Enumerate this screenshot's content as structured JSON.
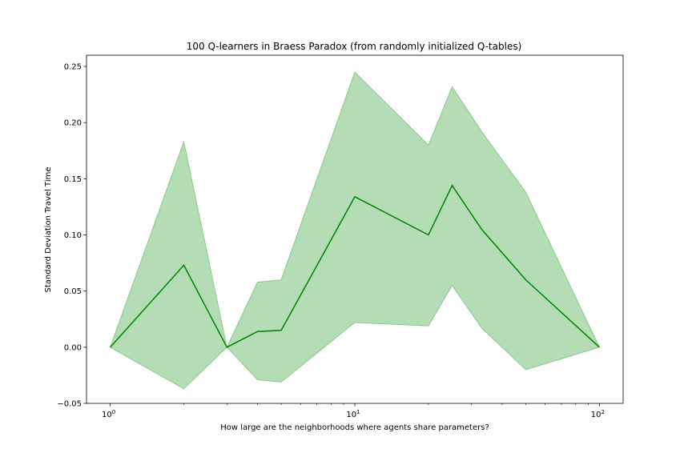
{
  "chart_data": {
    "type": "line",
    "title": "100 Q-learners in Braess Paradox (from randomly initialized Q-tables)",
    "xlabel": "How large are the neighborhoods where agents share parameters?",
    "ylabel": "Standard Deviation Travel Time",
    "xscale": "log",
    "xlim": [
      0.8,
      125
    ],
    "ylim": [
      -0.05,
      0.26
    ],
    "grid": false,
    "x": [
      1,
      2,
      3,
      4,
      5,
      10,
      20,
      25,
      33,
      50,
      100
    ],
    "series": [
      {
        "values": [
          0.0,
          0.073,
          0.0,
          0.014,
          0.015,
          0.134,
          0.1,
          0.144,
          0.105,
          0.06,
          0.0
        ],
        "lower": [
          0.0,
          -0.037,
          0.0,
          -0.029,
          -0.031,
          0.022,
          0.019,
          0.055,
          0.017,
          -0.02,
          0.0
        ],
        "upper": [
          0.0,
          0.183,
          0.0,
          0.058,
          0.06,
          0.245,
          0.18,
          0.232,
          0.192,
          0.138,
          0.0
        ],
        "color": "#008000",
        "band_color": "#5cb35c"
      }
    ],
    "yticks": [
      {
        "value": -0.05,
        "label": "−0.05"
      },
      {
        "value": 0.0,
        "label": "0.00"
      },
      {
        "value": 0.05,
        "label": "0.05"
      },
      {
        "value": 0.1,
        "label": "0.10"
      },
      {
        "value": 0.15,
        "label": "0.15"
      },
      {
        "value": 0.2,
        "label": "0.20"
      },
      {
        "value": 0.25,
        "label": "0.25"
      }
    ],
    "xticks": [
      {
        "value": 1,
        "base": "10",
        "exp": "0"
      },
      {
        "value": 10,
        "base": "10",
        "exp": "1"
      },
      {
        "value": 100,
        "base": "10",
        "exp": "2"
      }
    ],
    "xminor": [
      2,
      3,
      4,
      5,
      6,
      7,
      8,
      9,
      20,
      30,
      40,
      50,
      60,
      70,
      80,
      90
    ]
  }
}
